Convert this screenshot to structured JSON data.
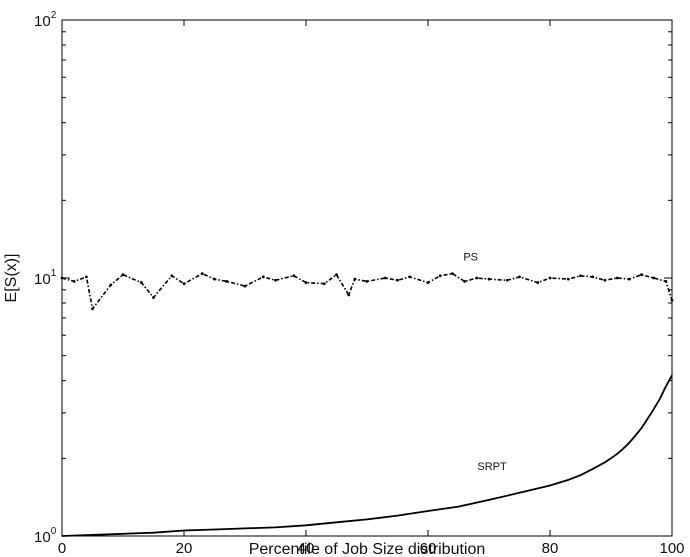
{
  "chart_data": {
    "type": "line",
    "title": "",
    "xlabel": "Percentile of Job Size distribution",
    "ylabel": "E[S(x)]",
    "xlim": [
      0,
      100
    ],
    "ylim": [
      1,
      100
    ],
    "yscale": "log",
    "grid": false,
    "x_ticks": [
      "0",
      "20",
      "40",
      "60",
      "80",
      "100"
    ],
    "y_ticks": [
      {
        "base": "10",
        "exp": "0",
        "value": 1
      },
      {
        "base": "10",
        "exp": "1",
        "value": 10
      },
      {
        "base": "10",
        "exp": "2",
        "value": 100
      }
    ],
    "annotations": [
      {
        "text": "PS",
        "x": 67,
        "y": 11.7
      },
      {
        "text": "SRPT",
        "x": 70.5,
        "y": 1.8
      }
    ],
    "series": [
      {
        "name": "PS",
        "style": "dash-dot",
        "x": [
          0,
          2,
          4,
          5,
          8,
          10,
          13,
          15,
          18,
          20,
          23,
          25,
          27,
          30,
          33,
          35,
          38,
          40,
          43,
          45,
          47,
          48,
          50,
          53,
          55,
          57,
          60,
          62,
          64,
          66,
          68,
          70,
          73,
          75,
          78,
          80,
          83,
          85,
          87,
          89,
          91,
          93,
          95,
          97,
          99,
          100
        ],
        "y": [
          10.0,
          9.7,
          10.1,
          7.6,
          9.4,
          10.3,
          9.6,
          8.4,
          10.2,
          9.5,
          10.4,
          9.9,
          9.7,
          9.3,
          10.1,
          9.8,
          10.2,
          9.6,
          9.5,
          10.3,
          8.6,
          9.9,
          9.7,
          10.0,
          9.8,
          10.1,
          9.6,
          10.2,
          10.4,
          9.7,
          10.0,
          9.9,
          9.8,
          10.1,
          9.6,
          10.0,
          9.9,
          10.2,
          10.1,
          9.8,
          10.0,
          9.9,
          10.3,
          10.0,
          9.7,
          8.2
        ]
      },
      {
        "name": "SRPT",
        "style": "solid",
        "x": [
          0,
          5,
          10,
          15,
          20,
          25,
          30,
          35,
          40,
          45,
          50,
          55,
          60,
          65,
          70,
          75,
          80,
          83,
          85,
          87,
          89,
          90,
          91,
          92,
          93,
          94,
          95,
          96,
          97,
          98,
          99,
          100
        ],
        "y": [
          1.0,
          1.01,
          1.02,
          1.03,
          1.05,
          1.06,
          1.07,
          1.08,
          1.1,
          1.13,
          1.16,
          1.2,
          1.25,
          1.3,
          1.38,
          1.47,
          1.57,
          1.65,
          1.72,
          1.82,
          1.93,
          2.0,
          2.08,
          2.18,
          2.3,
          2.45,
          2.62,
          2.85,
          3.1,
          3.4,
          3.8,
          4.2
        ]
      }
    ]
  }
}
